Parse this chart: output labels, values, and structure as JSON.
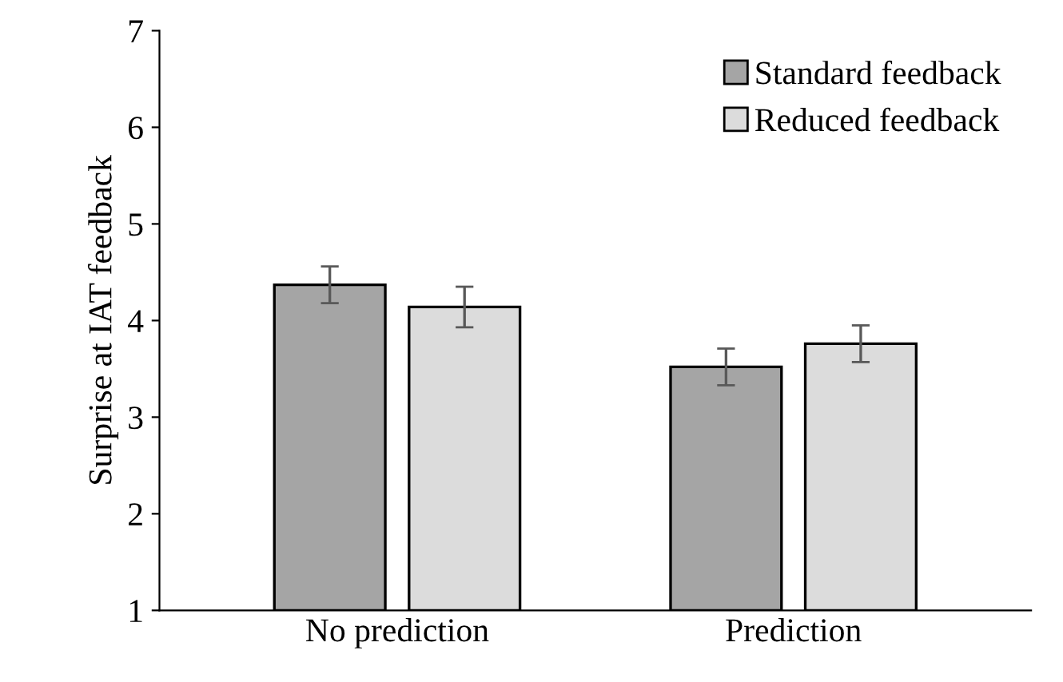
{
  "chart_data": {
    "type": "bar",
    "ylabel": "Surprise at IAT feedback",
    "categories": [
      "No prediction",
      "Prediction"
    ],
    "series": [
      {
        "name": "Standard feedback",
        "color": "#a5a5a5",
        "values": [
          4.37,
          3.52
        ],
        "errors": [
          0.19,
          0.19
        ]
      },
      {
        "name": "Reduced feedback",
        "color": "#dcdcdc",
        "values": [
          4.14,
          3.76
        ],
        "errors": [
          0.21,
          0.19
        ]
      }
    ],
    "ylim": [
      1,
      7
    ],
    "yticks": [
      1,
      2,
      3,
      4,
      5,
      6,
      7
    ],
    "grid": false,
    "legend": "top right"
  }
}
